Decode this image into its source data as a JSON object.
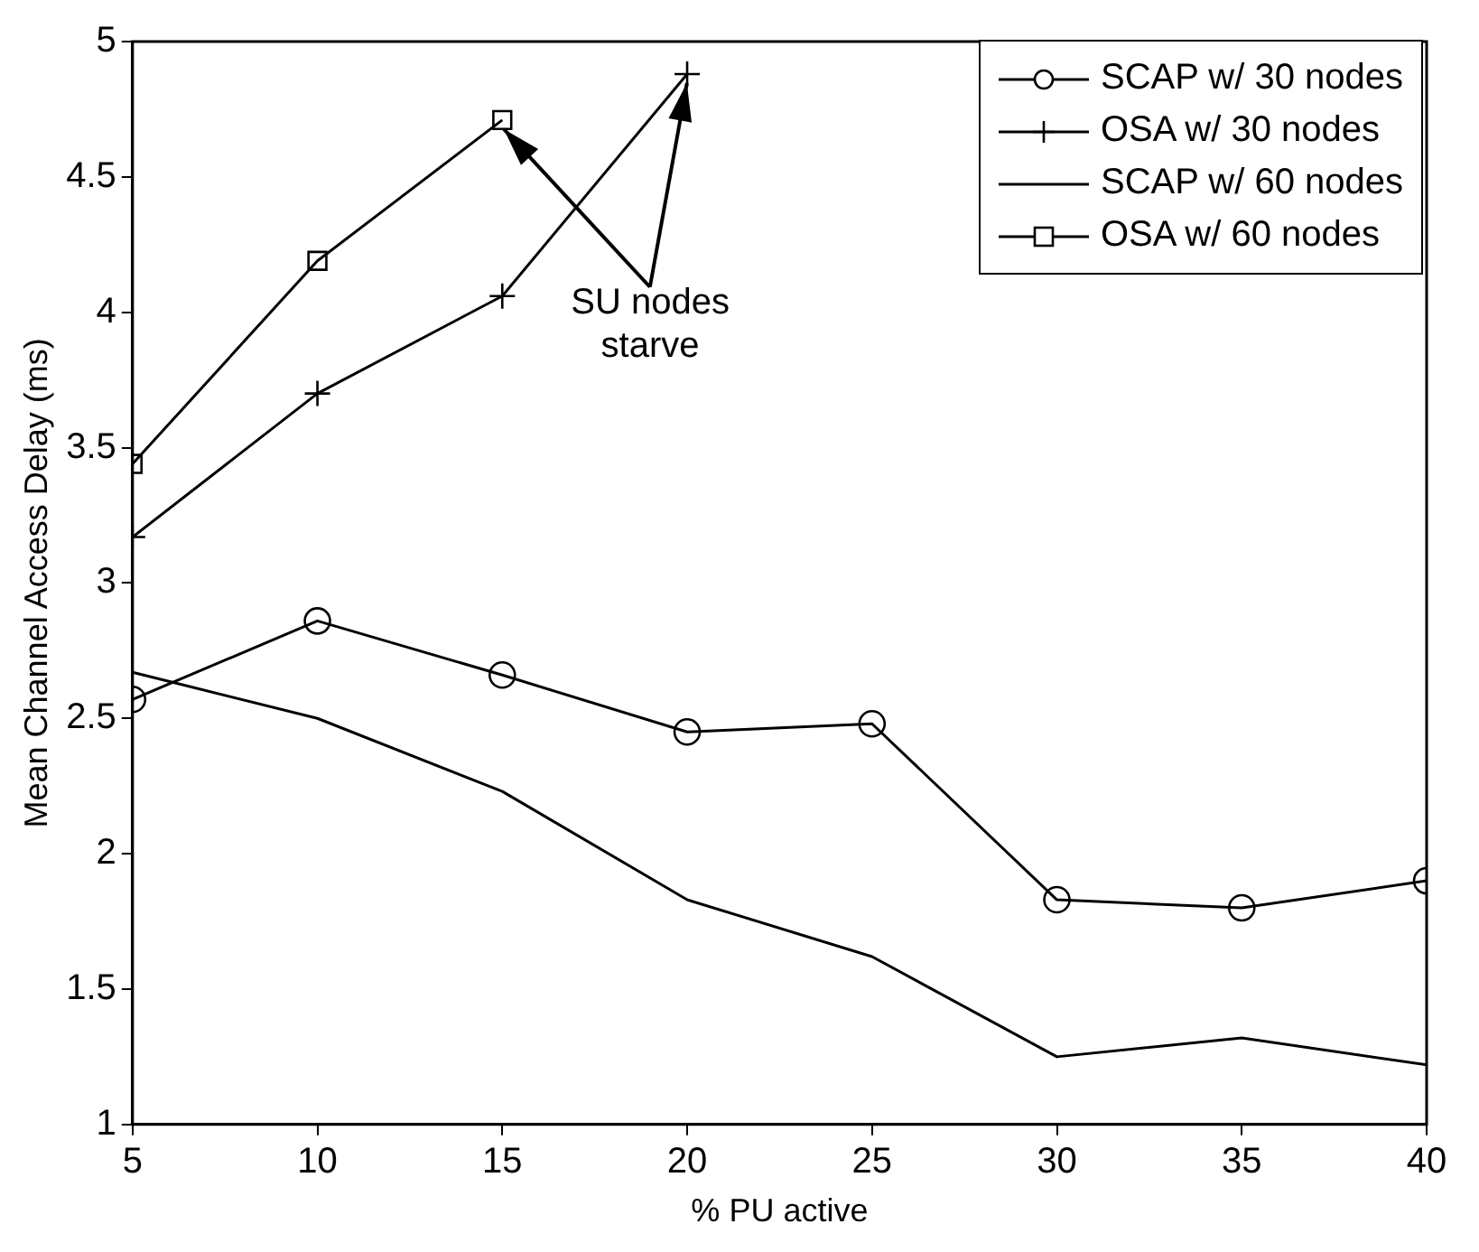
{
  "chart_data": {
    "type": "line",
    "xlabel": "% PU active",
    "ylabel": "Mean Channel Access Delay (ms)",
    "x": [
      5,
      10,
      15,
      20,
      25,
      30,
      35,
      40
    ],
    "series": [
      {
        "name": "SCAP w/ 30 nodes",
        "color": "#000000",
        "marker": "circle",
        "values": [
          2.57,
          2.86,
          2.66,
          2.45,
          2.48,
          1.83,
          1.8,
          1.9
        ]
      },
      {
        "name": "OSA w/ 30 nodes",
        "color": "#000000",
        "marker": "cross",
        "values": [
          3.17,
          3.7,
          4.06,
          4.88,
          null,
          null,
          null,
          null
        ]
      },
      {
        "name": "SCAP w/ 60 nodes",
        "color": "#000000",
        "marker": "none",
        "values": [
          2.67,
          2.5,
          2.23,
          1.83,
          1.62,
          1.25,
          1.32,
          1.22
        ]
      },
      {
        "name": "OSA w/ 60 nodes",
        "color": "#000000",
        "marker": "square",
        "values": [
          3.44,
          4.19,
          4.71,
          null,
          null,
          null,
          null,
          null
        ]
      }
    ],
    "xlim": [
      5,
      40
    ],
    "xticks": [
      5,
      10,
      15,
      20,
      25,
      30,
      35,
      40
    ],
    "ylim": [
      1,
      5
    ],
    "yticks": [
      1,
      1.5,
      2,
      2.5,
      3,
      3.5,
      4,
      4.5,
      5
    ],
    "grid": false,
    "legend": "top right",
    "line_style": "solid",
    "annotations": [
      {
        "text": "SU nodes starve",
        "x": 20,
        "y": 4.88
      }
    ]
  }
}
